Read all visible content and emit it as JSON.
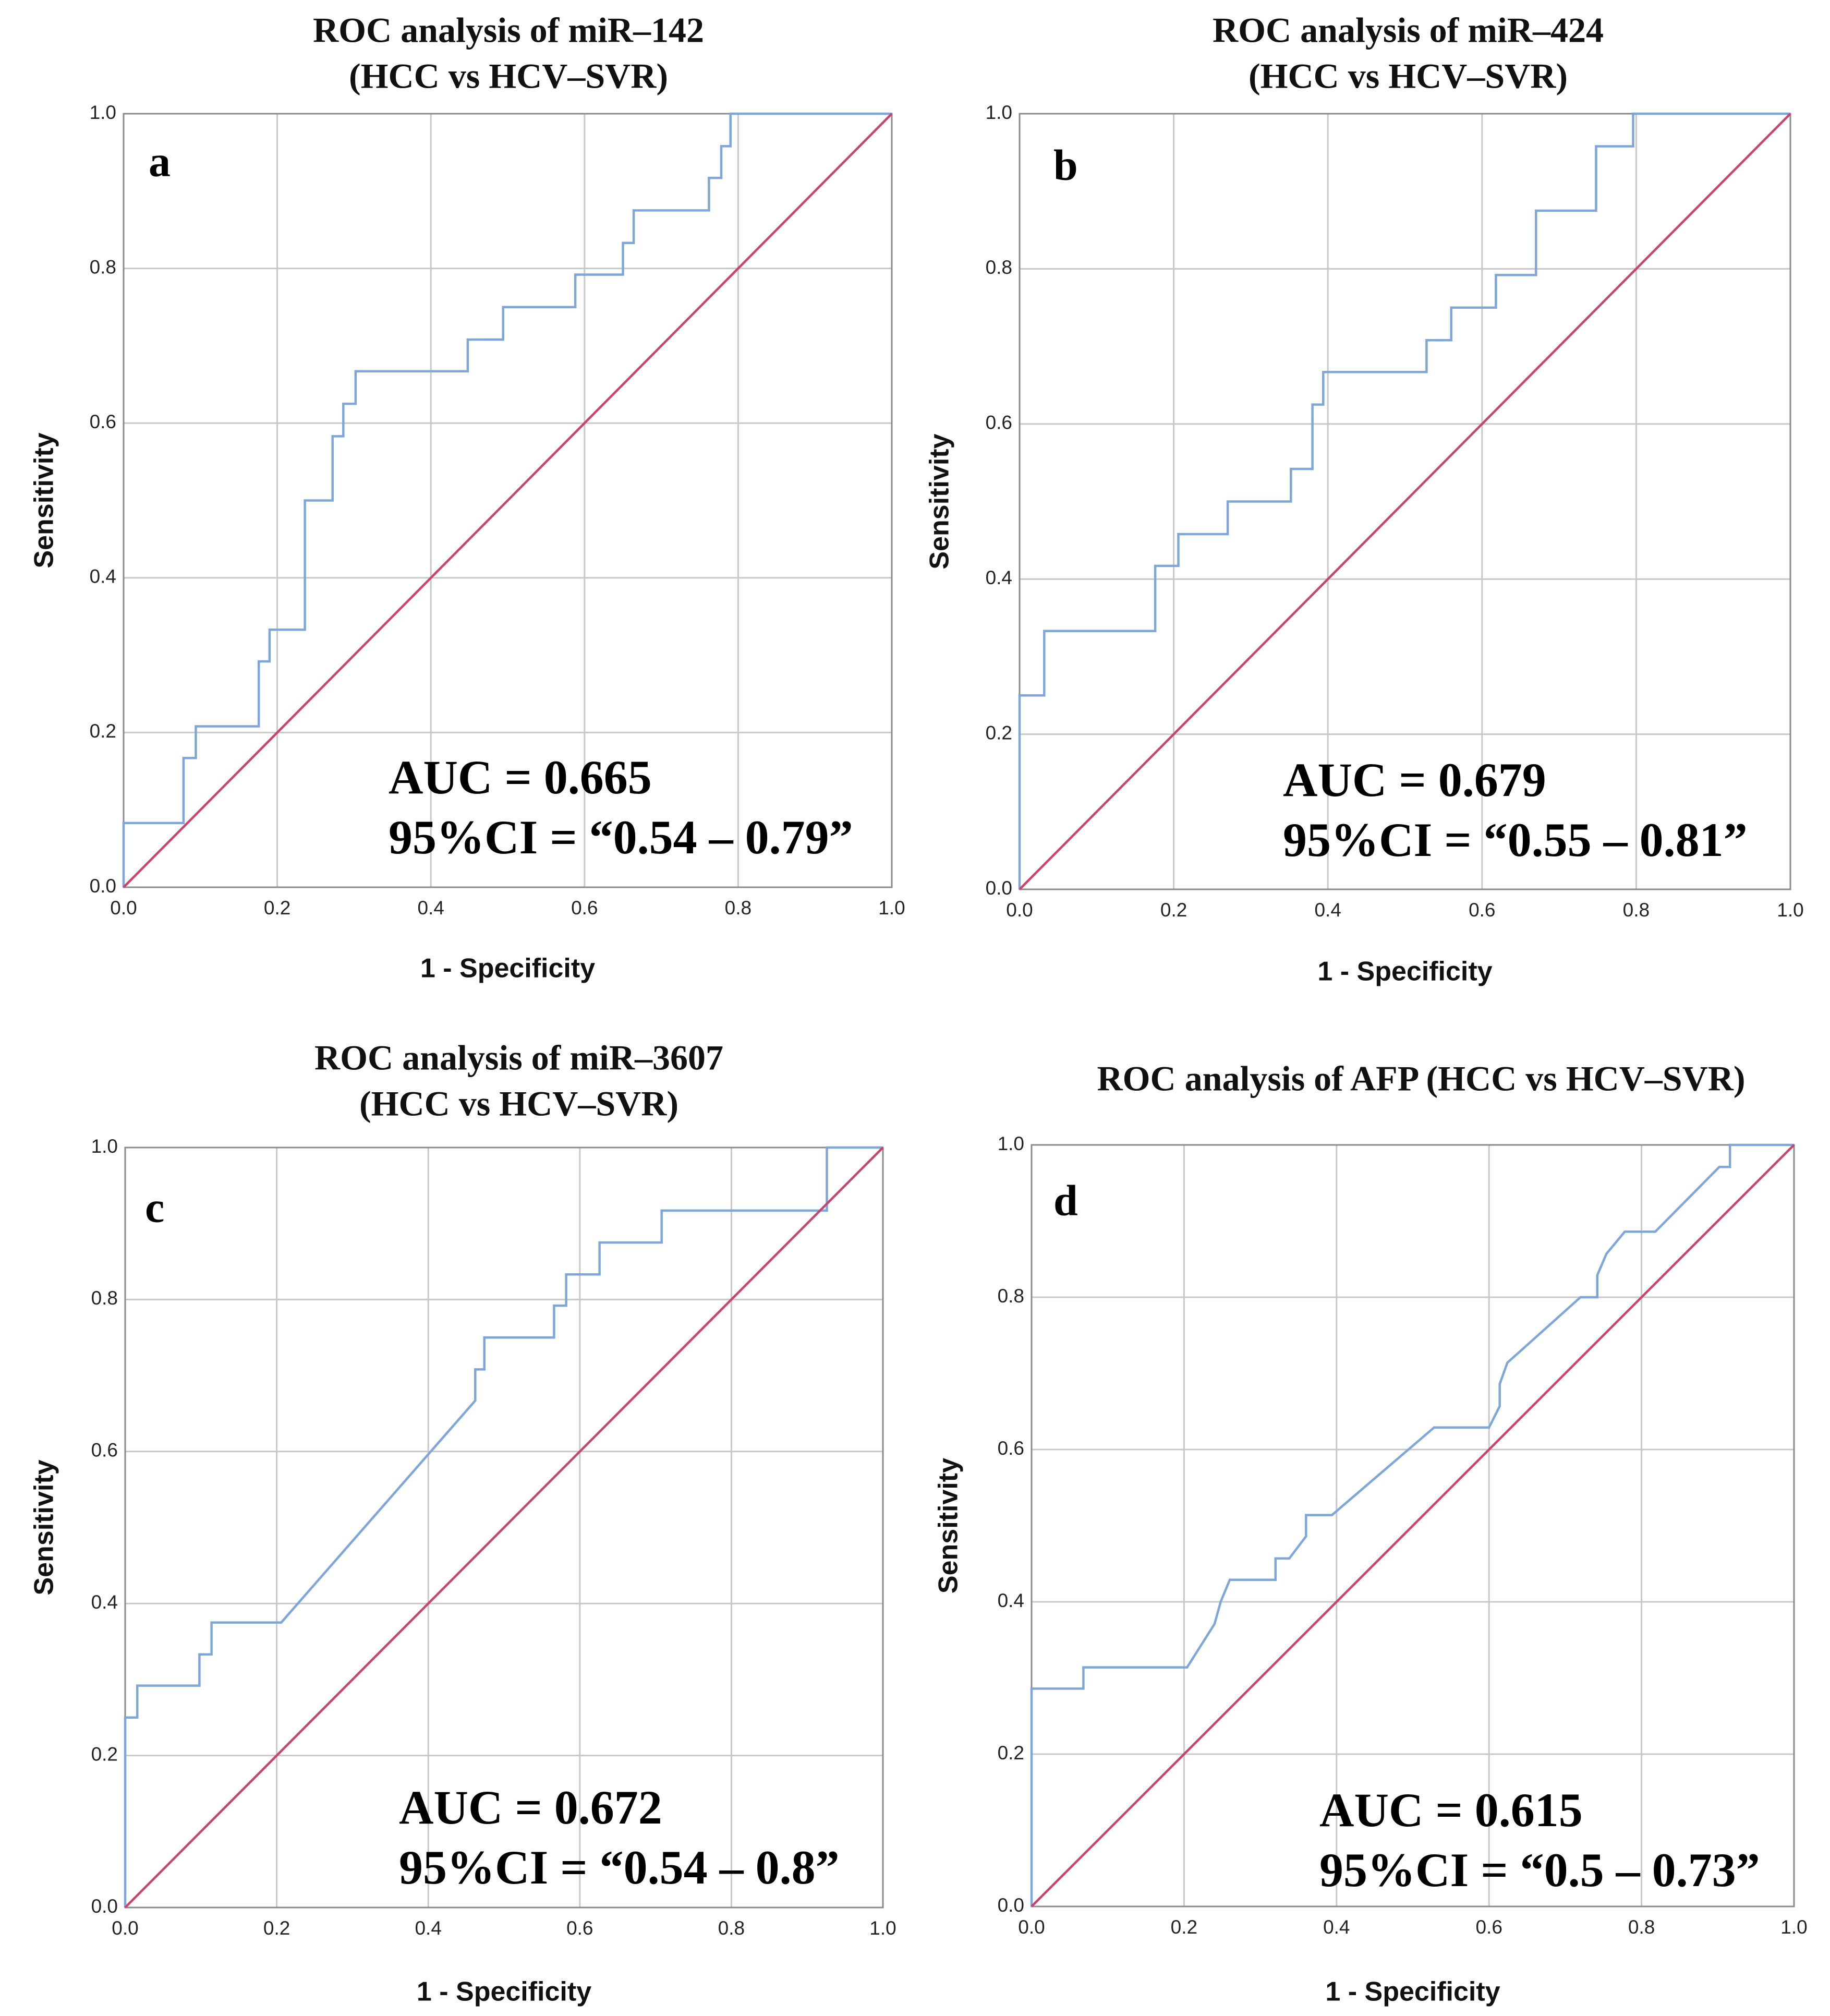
{
  "chart_data": [
    {
      "type": "line",
      "panel": "a",
      "title_lines": [
        "ROC analysis of miR–142",
        "(HCC vs HCV–SVR)"
      ],
      "xlabel": "1 - Specificity",
      "ylabel": "Sensitivity",
      "xlim": [
        0,
        1
      ],
      "ylim": [
        0,
        1
      ],
      "ticks": [
        "0.0",
        "0.2",
        "0.4",
        "0.6",
        "0.8",
        "1.0"
      ],
      "grid": true,
      "auc_text": "AUC = 0.665",
      "ci_text": "95%CI = “0.54 – 0.79”",
      "colors": {
        "roc": "#7ea6d8",
        "reference": "#c8466e"
      },
      "series": [
        {
          "name": "ROC",
          "x": [
            0,
            0,
            0.078,
            0.078,
            0.094,
            0.094,
            0.176,
            0.176,
            0.19,
            0.19,
            0.236,
            0.236,
            0.272,
            0.272,
            0.286,
            0.286,
            0.302,
            0.302,
            0.448,
            0.448,
            0.494,
            0.494,
            0.588,
            0.588,
            0.65,
            0.65,
            0.664,
            0.664,
            0.762,
            0.762,
            0.778,
            0.778,
            0.79,
            0.79,
            1
          ],
          "y": [
            0,
            0.083,
            0.083,
            0.167,
            0.167,
            0.208,
            0.208,
            0.292,
            0.292,
            0.333,
            0.333,
            0.5,
            0.5,
            0.583,
            0.583,
            0.625,
            0.625,
            0.667,
            0.667,
            0.708,
            0.708,
            0.75,
            0.75,
            0.792,
            0.792,
            0.833,
            0.833,
            0.875,
            0.875,
            0.917,
            0.917,
            0.958,
            0.958,
            1,
            1
          ]
        },
        {
          "name": "Reference",
          "x": [
            0,
            1
          ],
          "y": [
            0,
            1
          ]
        }
      ]
    },
    {
      "type": "line",
      "panel": "b",
      "title_lines": [
        "ROC analysis of miR–424",
        "(HCC vs HCV–SVR)"
      ],
      "xlabel": "1 - Specificity",
      "ylabel": "Sensitivity",
      "xlim": [
        0,
        1
      ],
      "ylim": [
        0,
        1
      ],
      "ticks": [
        "0.0",
        "0.2",
        "0.4",
        "0.6",
        "0.8",
        "1.0"
      ],
      "grid": true,
      "auc_text": "AUC = 0.679",
      "ci_text": "95%CI = “0.55 – 0.81”",
      "colors": {
        "roc": "#7ea6d8",
        "reference": "#c8466e"
      },
      "series": [
        {
          "name": "ROC",
          "x": [
            0,
            0,
            0.032,
            0.032,
            0.176,
            0.176,
            0.206,
            0.206,
            0.27,
            0.27,
            0.352,
            0.352,
            0.38,
            0.38,
            0.394,
            0.394,
            0.528,
            0.528,
            0.56,
            0.56,
            0.618,
            0.618,
            0.67,
            0.67,
            0.748,
            0.748,
            0.796,
            0.796,
            1
          ],
          "y": [
            0,
            0.25,
            0.25,
            0.333,
            0.333,
            0.417,
            0.417,
            0.458,
            0.458,
            0.5,
            0.5,
            0.542,
            0.542,
            0.625,
            0.625,
            0.667,
            0.667,
            0.708,
            0.708,
            0.75,
            0.75,
            0.792,
            0.792,
            0.875,
            0.875,
            0.958,
            0.958,
            1,
            1
          ]
        },
        {
          "name": "Reference",
          "x": [
            0,
            1
          ],
          "y": [
            0,
            1
          ]
        }
      ]
    },
    {
      "type": "line",
      "panel": "c",
      "title_lines": [
        "ROC analysis of miR–3607",
        "(HCC vs HCV–SVR)"
      ],
      "xlabel": "1 - Specificity",
      "ylabel": "Sensitivity",
      "xlim": [
        0,
        1
      ],
      "ylim": [
        0,
        1
      ],
      "ticks": [
        "0.0",
        "0.2",
        "0.4",
        "0.6",
        "0.8",
        "1.0"
      ],
      "grid": true,
      "auc_text": "AUC = 0.672",
      "ci_text": "95%CI = “0.54 – 0.8”",
      "colors": {
        "roc": "#7ea6d8",
        "reference": "#c8466e"
      },
      "series": [
        {
          "name": "ROC",
          "x": [
            0,
            0,
            0.016,
            0.016,
            0.098,
            0.098,
            0.114,
            0.114,
            0.206,
            0.462,
            0.462,
            0.474,
            0.474,
            0.566,
            0.566,
            0.582,
            0.582,
            0.626,
            0.626,
            0.708,
            0.708,
            0.926,
            0.926,
            1
          ],
          "y": [
            0,
            0.25,
            0.25,
            0.292,
            0.292,
            0.333,
            0.333,
            0.375,
            0.375,
            0.667,
            0.708,
            0.708,
            0.75,
            0.75,
            0.792,
            0.792,
            0.833,
            0.833,
            0.875,
            0.875,
            0.917,
            0.917,
            1,
            1
          ]
        },
        {
          "name": "Reference",
          "x": [
            0,
            1
          ],
          "y": [
            0,
            1
          ]
        }
      ]
    },
    {
      "type": "line",
      "panel": "d",
      "title_lines": [
        "ROC analysis of AFP (HCC vs HCV–SVR)"
      ],
      "xlabel": "1 - Specificity",
      "ylabel": "Sensitivity",
      "xlim": [
        0,
        1
      ],
      "ylim": [
        0,
        1
      ],
      "ticks": [
        "0.0",
        "0.2",
        "0.4",
        "0.6",
        "0.8",
        "1.0"
      ],
      "grid": true,
      "auc_text": "AUC = 0.615",
      "ci_text": "95%CI = “0.5 – 0.73”",
      "colors": {
        "roc": "#7ea6d8",
        "reference": "#c8466e"
      },
      "series": [
        {
          "name": "ROC",
          "x": [
            0,
            0,
            0.068,
            0.068,
            0.204,
            0.24,
            0.248,
            0.26,
            0.32,
            0.32,
            0.338,
            0.36,
            0.36,
            0.394,
            0.528,
            0.6,
            0.614,
            0.614,
            0.624,
            0.72,
            0.742,
            0.742,
            0.754,
            0.778,
            0.818,
            0.902,
            0.916,
            0.916,
            1
          ],
          "y": [
            0,
            0.286,
            0.286,
            0.314,
            0.314,
            0.371,
            0.4,
            0.429,
            0.429,
            0.457,
            0.457,
            0.486,
            0.514,
            0.514,
            0.629,
            0.629,
            0.657,
            0.686,
            0.714,
            0.8,
            0.8,
            0.829,
            0.857,
            0.886,
            0.886,
            0.971,
            0.971,
            1,
            1
          ]
        },
        {
          "name": "Reference",
          "x": [
            0,
            1
          ],
          "y": [
            0,
            1
          ]
        }
      ]
    }
  ]
}
